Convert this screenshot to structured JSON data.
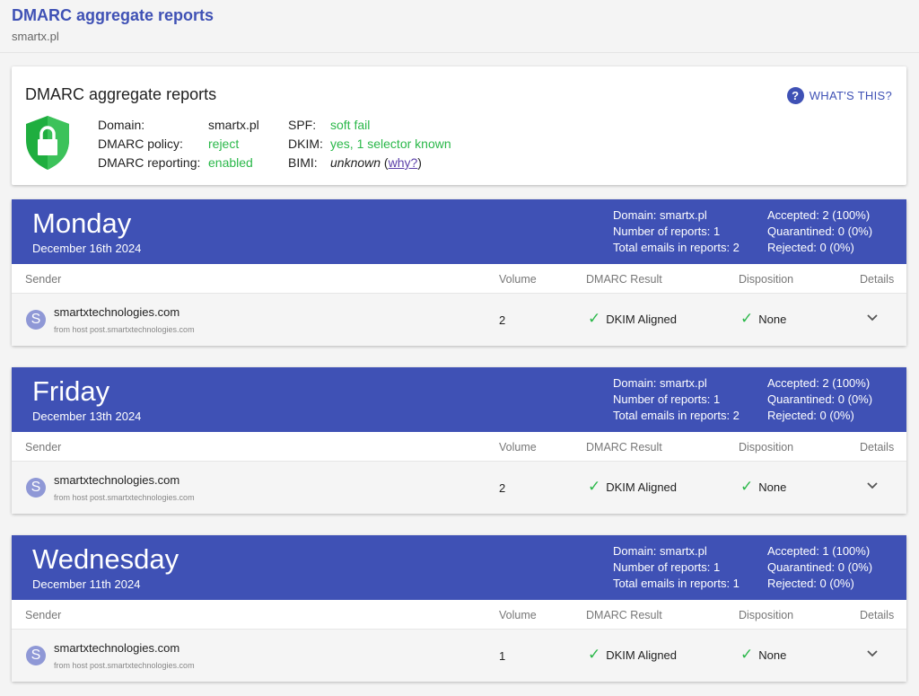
{
  "page": {
    "title": "DMARC aggregate reports",
    "subtitle": "smartx.pl"
  },
  "summary": {
    "title": "DMARC aggregate reports",
    "whats_this": "WHAT'S THIS?",
    "domain_label": "Domain:",
    "domain": "smartx.pl",
    "policy_label": "DMARC policy:",
    "policy": "reject",
    "reporting_label": "DMARC reporting:",
    "reporting": "enabled",
    "spf_label": "SPF:",
    "spf": "soft fail",
    "dkim_label": "DKIM:",
    "dkim": "yes, 1 selector known",
    "bimi_label": "BIMI:",
    "bimi": "unknown",
    "why_open": " (",
    "why": "why?",
    "why_close": ")"
  },
  "columns": {
    "sender": "Sender",
    "volume": "Volume",
    "result": "DMARC Result",
    "disposition": "Disposition",
    "details": "Details"
  },
  "reports": [
    {
      "day": "Monday",
      "date": "December 16th 2024",
      "domain": "Domain: smartx.pl",
      "reports": "Number of reports: 1",
      "total": "Total emails in reports: 2",
      "accepted": "Accepted: 2 (100%)",
      "quarantined": "Quarantined: 0 (0%)",
      "rejected": "Rejected: 0 (0%)",
      "sender": "smartxtechnologies.com",
      "avatar": "S",
      "host": "from host post.smartxtechnologies.com",
      "volume": "2",
      "result": "DKIM Aligned",
      "disposition": "None"
    },
    {
      "day": "Friday",
      "date": "December 13th 2024",
      "domain": "Domain: smartx.pl",
      "reports": "Number of reports: 1",
      "total": "Total emails in reports: 2",
      "accepted": "Accepted: 2 (100%)",
      "quarantined": "Quarantined: 0 (0%)",
      "rejected": "Rejected: 0 (0%)",
      "sender": "smartxtechnologies.com",
      "avatar": "S",
      "host": "from host post.smartxtechnologies.com",
      "volume": "2",
      "result": "DKIM Aligned",
      "disposition": "None"
    },
    {
      "day": "Wednesday",
      "date": "December 11th 2024",
      "domain": "Domain: smartx.pl",
      "reports": "Number of reports: 1",
      "total": "Total emails in reports: 1",
      "accepted": "Accepted: 1 (100%)",
      "quarantined": "Quarantined: 0 (0%)",
      "rejected": "Rejected: 0 (0%)",
      "sender": "smartxtechnologies.com",
      "avatar": "S",
      "host": "from host post.smartxtechnologies.com",
      "volume": "1",
      "result": "DKIM Aligned",
      "disposition": "None"
    }
  ]
}
